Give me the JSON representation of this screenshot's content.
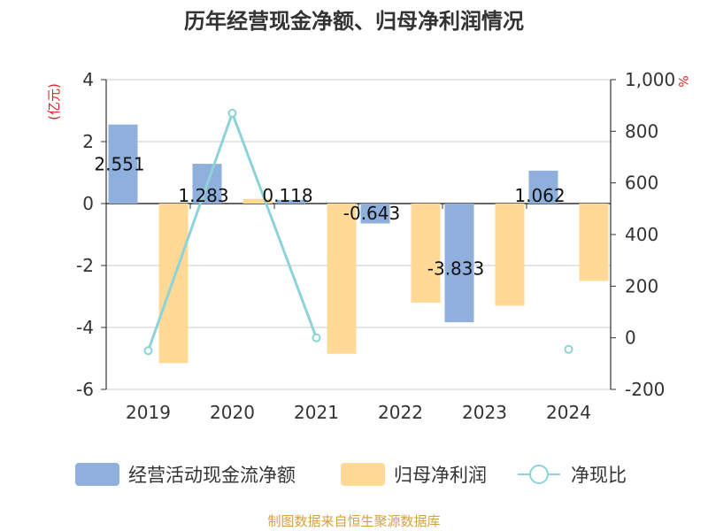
{
  "chart_data": {
    "type": "bar",
    "title": "历年经营现金净额、归母净利润情况",
    "categories": [
      "2019",
      "2020",
      "2021",
      "2022",
      "2023",
      "2024"
    ],
    "left_axis": {
      "unit_label": "(亿元)",
      "range": [
        -6,
        4
      ],
      "ticks": [
        "4",
        "2",
        "0",
        "-2",
        "-4",
        "-6"
      ]
    },
    "right_axis": {
      "unit_label": "%",
      "range": [
        -200,
        1000
      ],
      "ticks": [
        "1,000",
        "800",
        "600",
        "400",
        "200",
        "0",
        "-200"
      ]
    },
    "series": [
      {
        "name": "经营活动现金流净额",
        "type": "bar",
        "axis": "left",
        "color": "#8fb0dc",
        "values": [
          2.551,
          1.283,
          0.118,
          -0.643,
          -3.833,
          1.062
        ],
        "labels": [
          "2.551",
          "1.283",
          "0.118",
          "-0.643",
          "-3.833",
          "1.062"
        ]
      },
      {
        "name": "归母净利润",
        "type": "bar",
        "axis": "left",
        "color": "#ffd995",
        "values": [
          -5.15,
          0.15,
          -4.85,
          -3.2,
          -3.3,
          -2.5
        ]
      },
      {
        "name": "净现比",
        "type": "line",
        "axis": "right",
        "color": "#8dd3d8",
        "values": [
          -50,
          870,
          0,
          null,
          null,
          -45
        ]
      }
    ],
    "grid": true,
    "legend_position": "bottom"
  },
  "footer": {
    "source": "制图数据来自恒生聚源数据库"
  }
}
